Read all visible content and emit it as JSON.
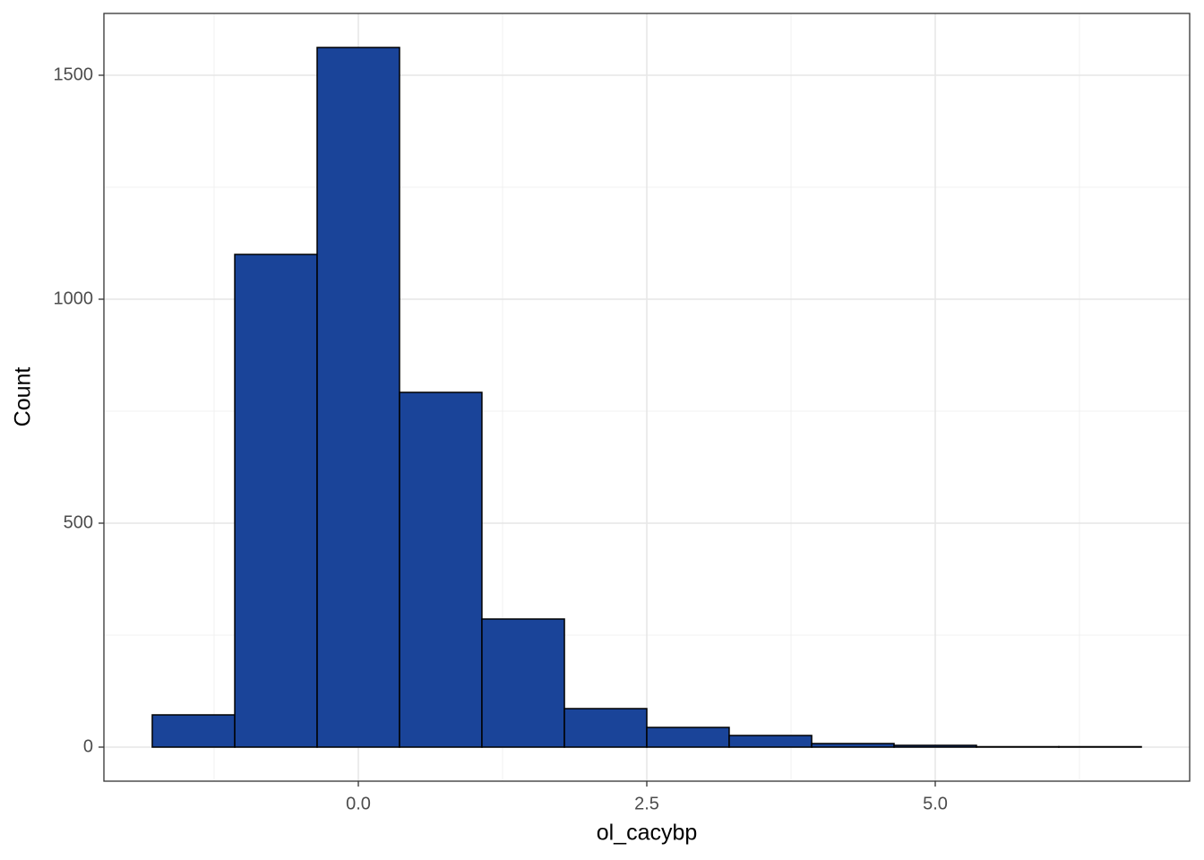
{
  "chart_data": {
    "type": "histogram",
    "x_label": "ol_cacybp",
    "y_label": "Count",
    "bins": [
      -1.786,
      -1.071,
      -0.357,
      0.357,
      1.071,
      1.786,
      2.5,
      3.214,
      3.929,
      4.643,
      5.357,
      6.071,
      6.786
    ],
    "values": [
      72,
      1100,
      1562,
      792,
      286,
      86,
      44,
      26,
      8,
      4,
      1,
      1
    ],
    "color": "#1a4499",
    "xlim": [
      -2.205,
      7.205
    ],
    "ylim": [
      -76,
      1638
    ],
    "xticks": [
      {
        "value": 0,
        "label": "0.0"
      },
      {
        "value": 2.5,
        "label": "2.5"
      },
      {
        "value": 5,
        "label": "5.0"
      }
    ],
    "yticks": [
      0,
      500,
      1000,
      1500
    ],
    "grid": true
  }
}
